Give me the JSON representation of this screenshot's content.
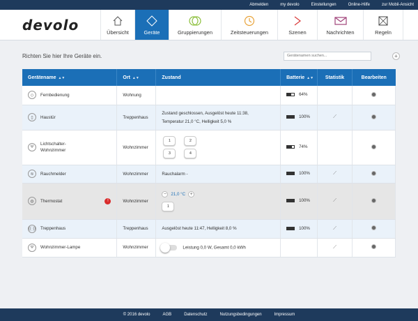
{
  "topbar": {
    "links": [
      "Abmelden",
      "my devolo",
      "Einstellungen",
      "Online-Hilfe",
      "zur Mobil-Ansicht"
    ]
  },
  "logo": "devolo",
  "nav": [
    {
      "label": "Übersicht",
      "icon": "home-icon"
    },
    {
      "label": "Geräte",
      "icon": "devices-icon",
      "active": true
    },
    {
      "label": "Gruppierungen",
      "icon": "groups-icon"
    },
    {
      "label": "Zeitsteuerungen",
      "icon": "clock-icon"
    },
    {
      "label": "Szenen",
      "icon": "scenes-icon"
    },
    {
      "label": "Nachrichten",
      "icon": "envelope-icon"
    },
    {
      "label": "Regeln",
      "icon": "rules-icon"
    }
  ],
  "main": {
    "hint": "Richten Sie hier Ihre Geräte ein.",
    "search_placeholder": "Gerätenamen suchen...",
    "add_label": "+"
  },
  "table": {
    "headers": [
      "Gerätename",
      "Ort",
      "Zustand",
      "Batterie",
      "Statistik",
      "Bearbeiten"
    ],
    "rows": [
      {
        "name": "Fernbedienung",
        "location": "Wohnung",
        "state": "",
        "battery": "64%",
        "battery_level": 0.64
      },
      {
        "name": "Haustür",
        "location": "Treppenhaus",
        "state_line1": "Zustand geschlossen,   Ausgelöst heute 11:38,",
        "state_line2": "Temperatur 21,0 °C,   Helligkeit 5,0 %",
        "battery": "100%",
        "battery_level": 1.0
      },
      {
        "name": "Lichtschalter-Wohnzimmer",
        "location": "Wohnzimmer",
        "buttons": [
          "1",
          "2",
          "3",
          "4"
        ],
        "battery": "74%",
        "battery_level": 0.74
      },
      {
        "name": "Rauchmelder",
        "location": "Wohnzimmer",
        "state": "Rauchalarm -",
        "battery": "100%",
        "battery_level": 1.0
      },
      {
        "name": "Thermostat",
        "location": "Wohnzimmer",
        "temperature": "21,0 °C",
        "minus": "−",
        "plus": "+",
        "mode_button": "1",
        "battery": "100%",
        "battery_level": 1.0,
        "warning": "!"
      },
      {
        "name": "Treppenhaus",
        "location": "Treppenhaus",
        "state": "Ausgelöst heute 11:47,   Helligkeit 8,0 %",
        "battery": "100%",
        "battery_level": 1.0
      },
      {
        "name": "Wohnzimmer-Lampe",
        "location": "Wohnzimmer",
        "state": "Leistung 0,0 W,  Gesamt 0,0 kWh",
        "battery": "",
        "switch_on": false
      }
    ]
  },
  "footer": {
    "items": [
      "© 2016 devolo",
      "AGB",
      "Datenschutz",
      "Nutzungsbedingungen",
      "Impressum"
    ]
  }
}
